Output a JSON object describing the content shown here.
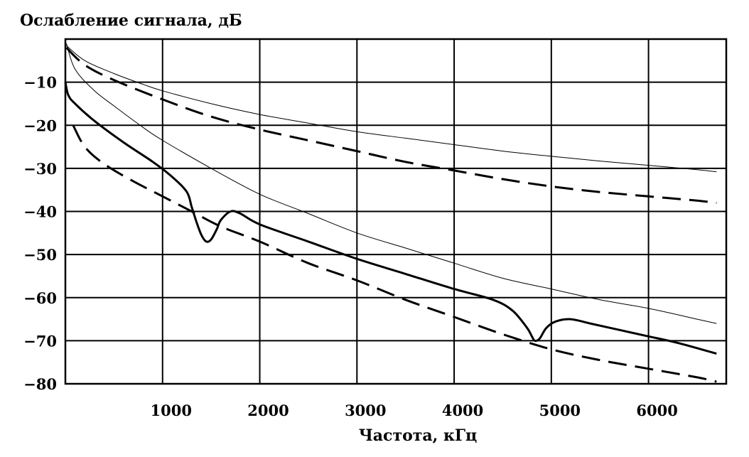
{
  "chart_data": {
    "type": "line",
    "ylabel": "Ослабление сигнала, дБ",
    "xlabel": "Частота, кГц",
    "xlim": [
      0,
      6800
    ],
    "ylim": [
      -80,
      0
    ],
    "grid": true,
    "x_ticks": [
      1000,
      2000,
      3000,
      4000,
      5000,
      6000
    ],
    "x_tick_labels": [
      "1000",
      "2000",
      "3000",
      "4000",
      "5000",
      "6000"
    ],
    "y_ticks": [
      -10,
      -20,
      -30,
      -40,
      -50,
      -60,
      -70,
      -80
    ],
    "y_tick_labels": [
      "-10",
      "-20",
      "-30",
      "-40",
      "-50",
      "-60",
      "-70",
      "-80"
    ],
    "series": [
      {
        "style": "thin-solid",
        "x": [
          10,
          200,
          500,
          800,
          1000,
          1500,
          2000,
          2500,
          3000,
          3500,
          4000,
          4500,
          5000,
          5500,
          6000,
          6500,
          6700
        ],
        "y": [
          -1.5,
          -5,
          -8,
          -10.5,
          -12,
          -15,
          -17.5,
          -19.5,
          -21.5,
          -23,
          -24.5,
          -26,
          -27.2,
          -28.3,
          -29.3,
          -30.3,
          -30.8
        ]
      },
      {
        "style": "dashed",
        "x": [
          10,
          200,
          500,
          1000,
          1500,
          2000,
          2500,
          3000,
          3500,
          4000,
          4500,
          5000,
          5500,
          6000,
          6500,
          6700
        ],
        "y": [
          -2,
          -6,
          -9.5,
          -14,
          -18,
          -21,
          -23.5,
          -26,
          -28.5,
          -30.5,
          -32.5,
          -34.2,
          -35.5,
          -36.5,
          -37.5,
          -38
        ]
      },
      {
        "style": "thin-solid",
        "x": [
          10,
          100,
          300,
          500,
          800,
          1000,
          1500,
          2000,
          2500,
          3000,
          3500,
          4000,
          4500,
          5000,
          5500,
          6000,
          6500,
          6700
        ],
        "y": [
          -1,
          -7,
          -12,
          -15.5,
          -20.5,
          -23.5,
          -30,
          -36,
          -40.5,
          -45,
          -48.5,
          -52,
          -55.5,
          -58,
          -60.5,
          -62.5,
          -65,
          -66
        ]
      },
      {
        "style": "bold-solid",
        "x": [
          0,
          30,
          100,
          300,
          600,
          900,
          1100,
          1250,
          1300,
          1350,
          1400,
          1450,
          1500,
          1560,
          1600,
          1700,
          1800,
          2000,
          2500,
          3000,
          3500,
          4000,
          4400,
          4600,
          4750,
          4800,
          4830,
          4880,
          4950,
          5050,
          5200,
          5400,
          5700,
          6000,
          6300,
          6700
        ],
        "y": [
          -10,
          -13,
          -15,
          -19,
          -24,
          -28.5,
          -32,
          -35.5,
          -39,
          -42.5,
          -45.5,
          -47,
          -46.5,
          -44,
          -42,
          -40,
          -40.5,
          -43,
          -47,
          -51,
          -54.5,
          -58,
          -60.5,
          -63,
          -67,
          -69,
          -70,
          -69.5,
          -67,
          -65.5,
          -65,
          -66,
          -67.5,
          -69,
          -70.5,
          -73
        ]
      },
      {
        "style": "dashed",
        "x": [
          80,
          200,
          400,
          700,
          1000,
          1300,
          1600,
          2000,
          2500,
          3000,
          3500,
          4000,
          4500,
          5000,
          5500,
          6000,
          6500,
          6700
        ],
        "y": [
          -20,
          -25,
          -29,
          -33,
          -36.5,
          -40,
          -43.5,
          -47,
          -52,
          -56,
          -60.5,
          -64.5,
          -68.5,
          -72,
          -74.5,
          -76.5,
          -78.5,
          -79.5
        ]
      }
    ]
  }
}
